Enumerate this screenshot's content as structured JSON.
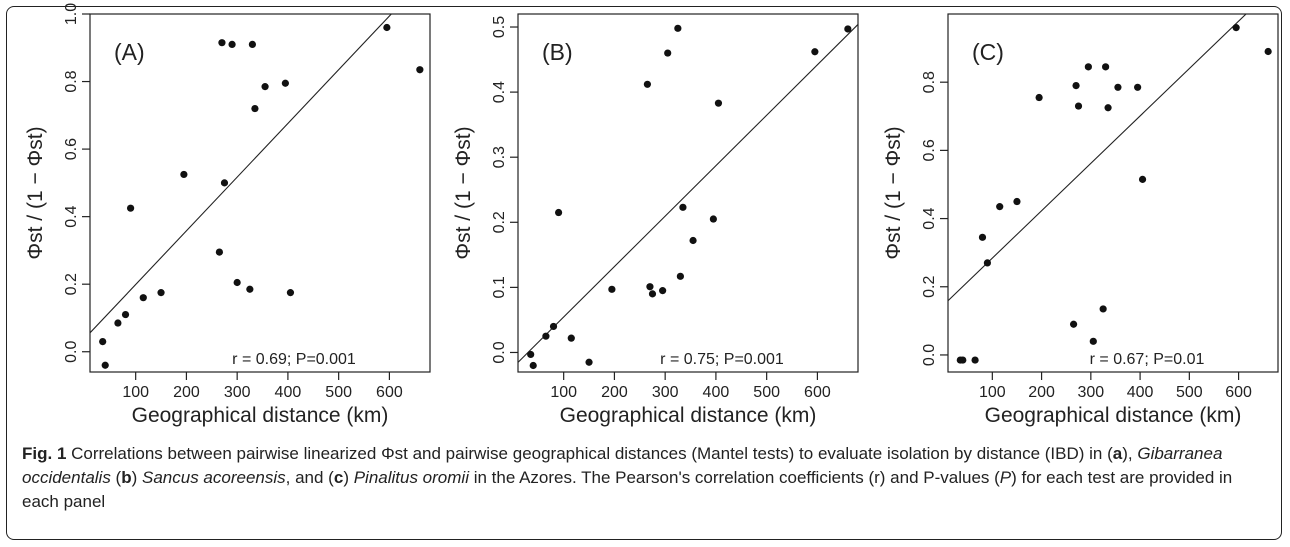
{
  "chart_data": [
    {
      "type": "scatter",
      "panel_label": "(A)",
      "xlabel": "Geographical distance (km)",
      "ylabel": "Φst / (1 − Φst)",
      "xlim": [
        10,
        680
      ],
      "ylim": [
        -0.06,
        1.0
      ],
      "xticks": [
        100,
        200,
        300,
        400,
        500,
        600
      ],
      "yticks": [
        0.0,
        0.2,
        0.4,
        0.6,
        0.8,
        1.0
      ],
      "ytick_labels": [
        "0.0",
        "0.2",
        "0.4",
        "0.6",
        "0.8",
        "1.0"
      ],
      "points": [
        [
          35,
          0.03
        ],
        [
          40,
          -0.04
        ],
        [
          65,
          0.085
        ],
        [
          80,
          0.11
        ],
        [
          90,
          0.425
        ],
        [
          115,
          0.16
        ],
        [
          150,
          0.175
        ],
        [
          195,
          0.525
        ],
        [
          265,
          0.295
        ],
        [
          270,
          0.915
        ],
        [
          275,
          0.5
        ],
        [
          290,
          0.91
        ],
        [
          300,
          0.205
        ],
        [
          325,
          0.185
        ],
        [
          330,
          0.91
        ],
        [
          335,
          0.72
        ],
        [
          355,
          0.785
        ],
        [
          395,
          0.795
        ],
        [
          405,
          0.175
        ],
        [
          595,
          0.96
        ],
        [
          660,
          0.835
        ]
      ],
      "fit": {
        "intercept": 0.04,
        "slope": 0.00159
      },
      "annotation": "r = 0.69; P=0.001"
    },
    {
      "type": "scatter",
      "panel_label": "(B)",
      "xlabel": "Geographical distance (km)",
      "ylabel": "Φst / (1 − Φst)",
      "xlim": [
        10,
        680
      ],
      "ylim": [
        -0.03,
        0.52
      ],
      "xticks": [
        100,
        200,
        300,
        400,
        500,
        600
      ],
      "yticks": [
        0.0,
        0.1,
        0.2,
        0.3,
        0.4,
        0.5
      ],
      "ytick_labels": [
        "0.0",
        "0.1",
        "0.2",
        "0.3",
        "0.4",
        "0.5"
      ],
      "points": [
        [
          35,
          -0.003
        ],
        [
          40,
          -0.02
        ],
        [
          65,
          0.025
        ],
        [
          80,
          0.04
        ],
        [
          90,
          0.215
        ],
        [
          115,
          0.022
        ],
        [
          150,
          -0.015
        ],
        [
          195,
          0.097
        ],
        [
          265,
          0.412
        ],
        [
          270,
          0.101
        ],
        [
          275,
          0.09
        ],
        [
          295,
          0.095
        ],
        [
          305,
          0.46
        ],
        [
          325,
          0.498
        ],
        [
          330,
          0.117
        ],
        [
          335,
          0.223
        ],
        [
          355,
          0.172
        ],
        [
          395,
          0.205
        ],
        [
          405,
          0.383
        ],
        [
          595,
          0.462
        ],
        [
          660,
          0.497
        ]
      ],
      "fit": {
        "intercept": -0.023,
        "slope": 0.000775
      },
      "annotation": "r = 0.75; P=0.001"
    },
    {
      "type": "scatter",
      "panel_label": "(C)",
      "xlabel": "Geographical distance (km)",
      "ylabel": "Φst / (1 − Φst)",
      "xlim": [
        10,
        680
      ],
      "ylim": [
        -0.05,
        1.0
      ],
      "xticks": [
        100,
        200,
        300,
        400,
        500,
        600
      ],
      "yticks": [
        0.0,
        0.2,
        0.4,
        0.6,
        0.8
      ],
      "ytick_labels": [
        "0.0",
        "0.2",
        "0.4",
        "0.6",
        "0.8"
      ],
      "points": [
        [
          35,
          -0.015
        ],
        [
          40,
          -0.015
        ],
        [
          65,
          -0.015
        ],
        [
          80,
          0.345
        ],
        [
          90,
          0.27
        ],
        [
          115,
          0.435
        ],
        [
          150,
          0.45
        ],
        [
          195,
          0.755
        ],
        [
          265,
          0.09
        ],
        [
          270,
          0.79
        ],
        [
          275,
          0.73
        ],
        [
          295,
          0.845
        ],
        [
          305,
          0.04
        ],
        [
          325,
          0.135
        ],
        [
          330,
          0.845
        ],
        [
          335,
          0.725
        ],
        [
          355,
          0.785
        ],
        [
          395,
          0.785
        ],
        [
          405,
          0.515
        ],
        [
          595,
          0.96
        ],
        [
          660,
          0.89
        ]
      ],
      "fit": {
        "intercept": 0.145,
        "slope": 0.00139
      },
      "annotation": "r = 0.67; P=0.01"
    }
  ],
  "caption": {
    "fig_label": "Fig. 1",
    "text_1": " Correlations between pairwise linearized Φst and pairwise geographical distances (Mantel tests) to evaluate isolation by distance (IBD) in (",
    "ref_a": "a",
    "text_2": "), ",
    "species_a": "Gibarranea occidentalis",
    "text_3": " (",
    "ref_b": "b",
    "text_4": ") ",
    "species_b": "Sancus acoreensis",
    "text_5": ", and (",
    "ref_c": "c",
    "text_6": ") ",
    "species_c": "Pinalitus oromii",
    "text_7": " in the Azores. The Pearson's correlation coefficients (r) and P-values (",
    "p_italic": "P",
    "text_8": ") for each test are provided in each panel"
  },
  "colors": {
    "points": "#111111",
    "axes": "#222222",
    "caption_text": "#222222"
  }
}
